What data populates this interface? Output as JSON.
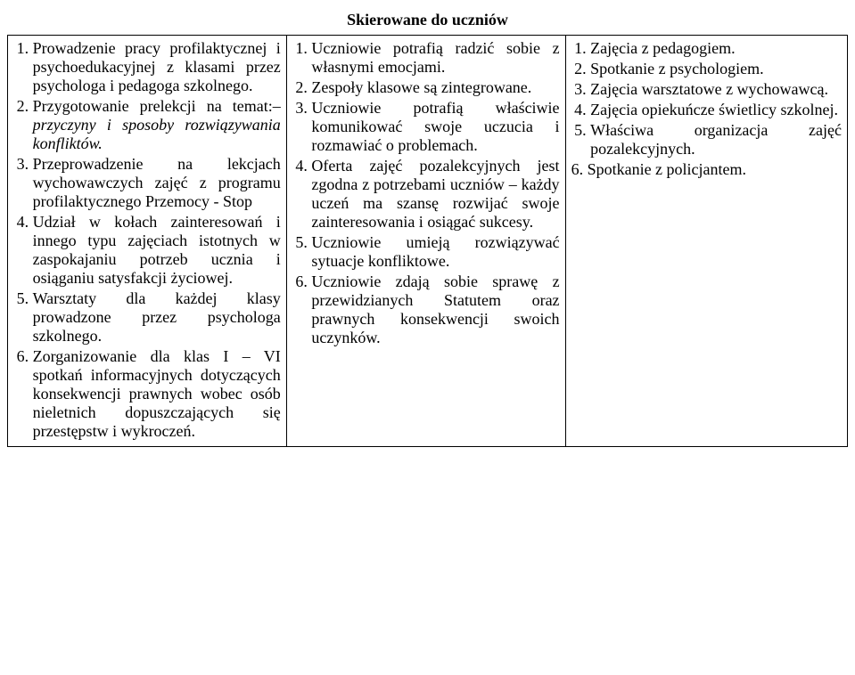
{
  "doc": {
    "title": "Skierowane do uczniów",
    "col1": {
      "items": [
        {
          "pre": "Prowadzenie pracy profilaktycznej i psychoedukacyjnej z klasami przez psychologa i pedagoga szkolnego."
        },
        {
          "pre": "Przygotowanie prelekcji na temat:– ",
          "it": "przyczyny i sposoby rozwiązywania konfliktów."
        },
        {
          "pre": "Przeprowadzenie na lekcjach wychowawczych zajęć z programu profilaktycznego Przemocy - Stop"
        },
        {
          "pre": "Udział w kołach zainteresowań i innego typu zajęciach istotnych w zaspokajaniu potrzeb ucznia i osiąganiu satysfakcji życiowej."
        },
        {
          "pre": "Warsztaty dla każdej klasy prowadzone przez psychologa szkolnego."
        },
        {
          "pre": "Zorganizowanie dla klas I – VI spotkań informacyjnych dotyczących konsekwencji prawnych wobec osób nieletnich dopuszczających się przestępstw i wykroczeń."
        }
      ]
    },
    "col2": {
      "items": [
        {
          "pre": "Uczniowie potrafią radzić sobie z własnymi emocjami."
        },
        {
          "pre": "Zespoły klasowe są zintegrowane."
        },
        {
          "pre": "Uczniowie potrafią właściwie komunikować swoje uczucia i rozmawiać o problemach."
        },
        {
          "pre": "Oferta zajęć pozalekcyjnych jest zgodna z potrzebami uczniów – każdy uczeń ma szansę rozwijać swoje zainteresowania i osiągać sukcesy."
        },
        {
          "pre": "Uczniowie umieją rozwiązywać sytuacje konfliktowe."
        },
        {
          "pre": "Uczniowie zdają sobie sprawę z przewidzianych Statutem oraz prawnych konsekwencji swoich uczynków."
        }
      ]
    },
    "col3": {
      "items": [
        {
          "pre": "Zajęcia z pedagogiem."
        },
        {
          "pre": "Spotkanie z psychologiem."
        },
        {
          "pre": "Zajęcia warsztatowe z wychowawcą."
        },
        {
          "pre": "Zajęcia opiekuńcze świetlicy szkolnej."
        },
        {
          "pre": "Właściwa organizacja zajęć pozalekcyjnych."
        }
      ],
      "extra": "6. Spotkanie z policjantem."
    }
  }
}
